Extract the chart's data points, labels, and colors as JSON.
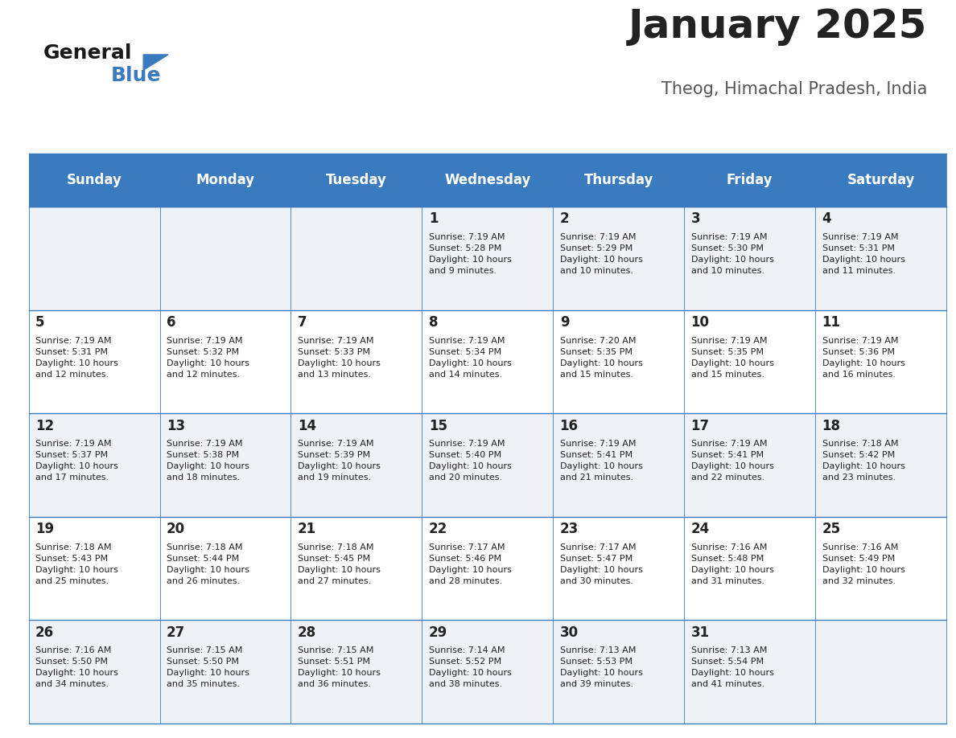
{
  "title": "January 2025",
  "subtitle": "Theog, Himachal Pradesh, India",
  "days_of_week": [
    "Sunday",
    "Monday",
    "Tuesday",
    "Wednesday",
    "Thursday",
    "Friday",
    "Saturday"
  ],
  "header_bg": "#3a7bbf",
  "header_text": "#ffffff",
  "row_bg_odd": "#eef2f7",
  "row_bg_even": "#ffffff",
  "cell_text": "#222222",
  "divider_color": "#3a7bbf",
  "title_color": "#222222",
  "subtitle_color": "#555555",
  "logo_general_color": "#1a1a1a",
  "logo_blue_color": "#3a7bbf",
  "calendar_data": [
    [
      {
        "day": "",
        "info": ""
      },
      {
        "day": "",
        "info": ""
      },
      {
        "day": "",
        "info": ""
      },
      {
        "day": "1",
        "info": "Sunrise: 7:19 AM\nSunset: 5:28 PM\nDaylight: 10 hours\nand 9 minutes."
      },
      {
        "day": "2",
        "info": "Sunrise: 7:19 AM\nSunset: 5:29 PM\nDaylight: 10 hours\nand 10 minutes."
      },
      {
        "day": "3",
        "info": "Sunrise: 7:19 AM\nSunset: 5:30 PM\nDaylight: 10 hours\nand 10 minutes."
      },
      {
        "day": "4",
        "info": "Sunrise: 7:19 AM\nSunset: 5:31 PM\nDaylight: 10 hours\nand 11 minutes."
      }
    ],
    [
      {
        "day": "5",
        "info": "Sunrise: 7:19 AM\nSunset: 5:31 PM\nDaylight: 10 hours\nand 12 minutes."
      },
      {
        "day": "6",
        "info": "Sunrise: 7:19 AM\nSunset: 5:32 PM\nDaylight: 10 hours\nand 12 minutes."
      },
      {
        "day": "7",
        "info": "Sunrise: 7:19 AM\nSunset: 5:33 PM\nDaylight: 10 hours\nand 13 minutes."
      },
      {
        "day": "8",
        "info": "Sunrise: 7:19 AM\nSunset: 5:34 PM\nDaylight: 10 hours\nand 14 minutes."
      },
      {
        "day": "9",
        "info": "Sunrise: 7:20 AM\nSunset: 5:35 PM\nDaylight: 10 hours\nand 15 minutes."
      },
      {
        "day": "10",
        "info": "Sunrise: 7:19 AM\nSunset: 5:35 PM\nDaylight: 10 hours\nand 15 minutes."
      },
      {
        "day": "11",
        "info": "Sunrise: 7:19 AM\nSunset: 5:36 PM\nDaylight: 10 hours\nand 16 minutes."
      }
    ],
    [
      {
        "day": "12",
        "info": "Sunrise: 7:19 AM\nSunset: 5:37 PM\nDaylight: 10 hours\nand 17 minutes."
      },
      {
        "day": "13",
        "info": "Sunrise: 7:19 AM\nSunset: 5:38 PM\nDaylight: 10 hours\nand 18 minutes."
      },
      {
        "day": "14",
        "info": "Sunrise: 7:19 AM\nSunset: 5:39 PM\nDaylight: 10 hours\nand 19 minutes."
      },
      {
        "day": "15",
        "info": "Sunrise: 7:19 AM\nSunset: 5:40 PM\nDaylight: 10 hours\nand 20 minutes."
      },
      {
        "day": "16",
        "info": "Sunrise: 7:19 AM\nSunset: 5:41 PM\nDaylight: 10 hours\nand 21 minutes."
      },
      {
        "day": "17",
        "info": "Sunrise: 7:19 AM\nSunset: 5:41 PM\nDaylight: 10 hours\nand 22 minutes."
      },
      {
        "day": "18",
        "info": "Sunrise: 7:18 AM\nSunset: 5:42 PM\nDaylight: 10 hours\nand 23 minutes."
      }
    ],
    [
      {
        "day": "19",
        "info": "Sunrise: 7:18 AM\nSunset: 5:43 PM\nDaylight: 10 hours\nand 25 minutes."
      },
      {
        "day": "20",
        "info": "Sunrise: 7:18 AM\nSunset: 5:44 PM\nDaylight: 10 hours\nand 26 minutes."
      },
      {
        "day": "21",
        "info": "Sunrise: 7:18 AM\nSunset: 5:45 PM\nDaylight: 10 hours\nand 27 minutes."
      },
      {
        "day": "22",
        "info": "Sunrise: 7:17 AM\nSunset: 5:46 PM\nDaylight: 10 hours\nand 28 minutes."
      },
      {
        "day": "23",
        "info": "Sunrise: 7:17 AM\nSunset: 5:47 PM\nDaylight: 10 hours\nand 30 minutes."
      },
      {
        "day": "24",
        "info": "Sunrise: 7:16 AM\nSunset: 5:48 PM\nDaylight: 10 hours\nand 31 minutes."
      },
      {
        "day": "25",
        "info": "Sunrise: 7:16 AM\nSunset: 5:49 PM\nDaylight: 10 hours\nand 32 minutes."
      }
    ],
    [
      {
        "day": "26",
        "info": "Sunrise: 7:16 AM\nSunset: 5:50 PM\nDaylight: 10 hours\nand 34 minutes."
      },
      {
        "day": "27",
        "info": "Sunrise: 7:15 AM\nSunset: 5:50 PM\nDaylight: 10 hours\nand 35 minutes."
      },
      {
        "day": "28",
        "info": "Sunrise: 7:15 AM\nSunset: 5:51 PM\nDaylight: 10 hours\nand 36 minutes."
      },
      {
        "day": "29",
        "info": "Sunrise: 7:14 AM\nSunset: 5:52 PM\nDaylight: 10 hours\nand 38 minutes."
      },
      {
        "day": "30",
        "info": "Sunrise: 7:13 AM\nSunset: 5:53 PM\nDaylight: 10 hours\nand 39 minutes."
      },
      {
        "day": "31",
        "info": "Sunrise: 7:13 AM\nSunset: 5:54 PM\nDaylight: 10 hours\nand 41 minutes."
      },
      {
        "day": "",
        "info": ""
      }
    ]
  ]
}
